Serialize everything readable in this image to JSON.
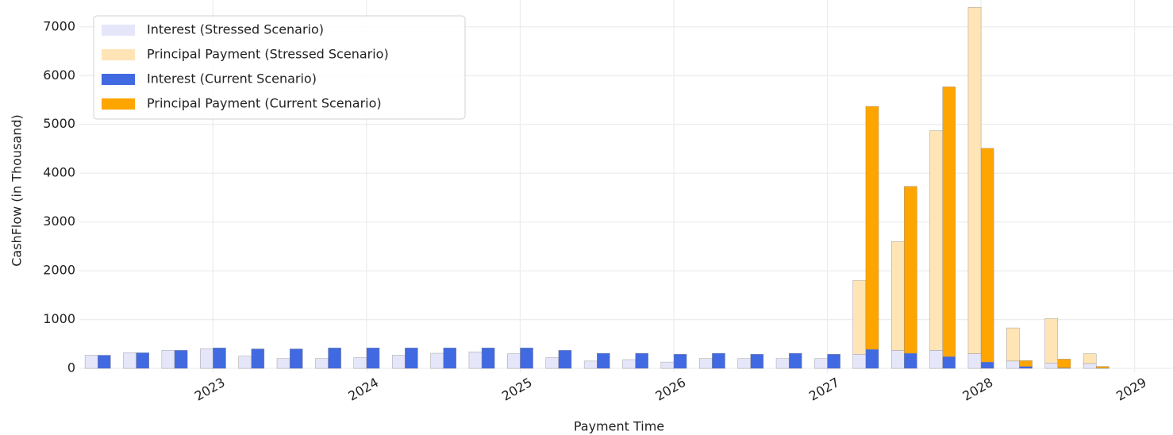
{
  "chart_data": {
    "type": "bar",
    "x_label": "Payment Time",
    "y_label": "CashFlow (in Thousand)",
    "x": [
      2022.25,
      2022.5,
      2022.75,
      2023.0,
      2023.25,
      2023.5,
      2023.75,
      2024.0,
      2024.25,
      2024.5,
      2024.75,
      2025.0,
      2025.25,
      2025.5,
      2025.75,
      2026.0,
      2026.25,
      2026.5,
      2026.75,
      2027.0,
      2027.25,
      2027.5,
      2027.75,
      2028.0,
      2028.25,
      2028.5,
      2028.75
    ],
    "series": [
      {
        "name": "Interest (Stressed Scenario)",
        "color": "#e6e6fa",
        "stack": 0,
        "values": [
          270,
          320,
          370,
          400,
          250,
          200,
          200,
          220,
          270,
          310,
          340,
          300,
          220,
          150,
          180,
          130,
          200,
          200,
          200,
          200,
          290,
          370,
          370,
          300,
          150,
          110,
          100
        ]
      },
      {
        "name": "Principal Payment (Stressed Scenario)",
        "color": "#ffe4b5",
        "stack": 0,
        "values": [
          0,
          0,
          0,
          0,
          0,
          0,
          0,
          0,
          0,
          0,
          0,
          0,
          0,
          0,
          0,
          0,
          0,
          0,
          0,
          0,
          1510,
          2230,
          4500,
          7100,
          680,
          910,
          200
        ]
      },
      {
        "name": "Interest (Current Scenario)",
        "color": "#4169e1",
        "stack": 1,
        "values": [
          270,
          320,
          370,
          420,
          400,
          400,
          420,
          420,
          420,
          420,
          420,
          420,
          370,
          310,
          310,
          290,
          310,
          290,
          310,
          290,
          390,
          310,
          240,
          130,
          40,
          10,
          5
        ]
      },
      {
        "name": "Principal Payment (Current Scenario)",
        "color": "#ffa500",
        "stack": 1,
        "values": [
          0,
          0,
          0,
          0,
          0,
          0,
          0,
          0,
          0,
          0,
          0,
          0,
          0,
          0,
          0,
          0,
          0,
          0,
          0,
          0,
          4980,
          3420,
          5530,
          4380,
          120,
          180,
          35
        ]
      }
    ],
    "xlim": [
      2022.13,
      2029.25
    ],
    "xticks": [
      2023,
      2024,
      2025,
      2026,
      2027,
      2028,
      2029
    ],
    "ylim": [
      -80,
      7550
    ],
    "yticks": [
      0,
      1000,
      2000,
      3000,
      4000,
      5000,
      6000,
      7000
    ],
    "grid": true,
    "legend": "upper left"
  }
}
